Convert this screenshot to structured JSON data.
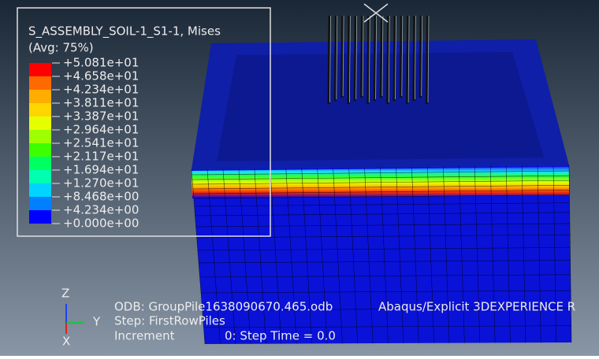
{
  "legend": {
    "title": "S_ASSEMBLY_SOIL-1_S1-1, Mises",
    "subtitle": "(Avg: 75%)",
    "labels": [
      "+5.081e+01",
      "+4.658e+01",
      "+4.234e+01",
      "+3.811e+01",
      "+3.387e+01",
      "+2.964e+01",
      "+2.541e+01",
      "+2.117e+01",
      "+1.694e+01",
      "+1.270e+01",
      "+8.468e+00",
      "+4.234e+00",
      "+0.000e+00"
    ]
  },
  "triad": {
    "z": "Z",
    "y": "Y",
    "x": "X"
  },
  "info": {
    "odb": "ODB: GroupPile1638090670.465.odb",
    "product": "Abaqus/Explicit 3DEXPERIENCE R",
    "step": "Step: FirstRowPiles",
    "increment_label": "Increment",
    "increment_value": "0: Step Time = 0.0"
  }
}
